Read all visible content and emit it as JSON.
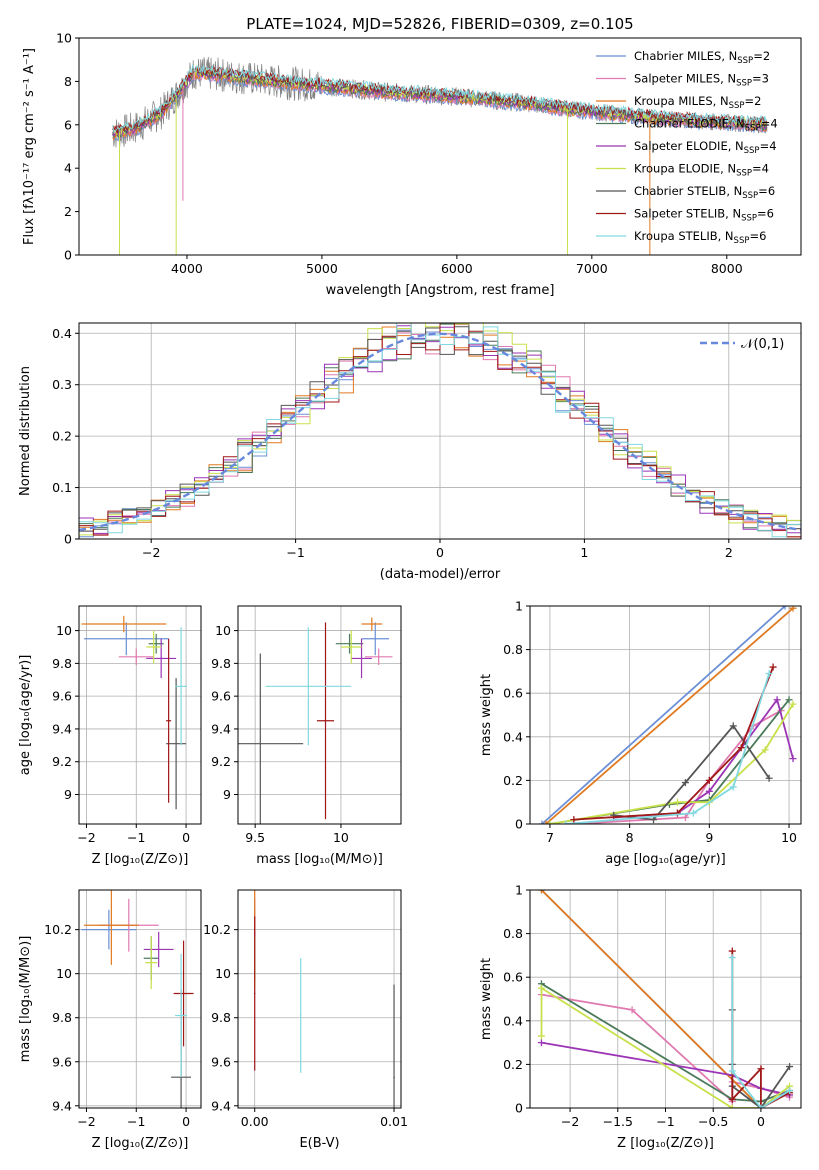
{
  "figure": {
    "title": "PLATE=1024, MJD=52826, FIBERID=0309, z=0.105"
  },
  "colors": {
    "models": [
      "#6b8fd6",
      "#e07ab0",
      "#e07a20",
      "#4a7a5a",
      "#9b35b5",
      "#c8e04a",
      "#555555",
      "#a01818",
      "#80d8e0"
    ],
    "normal_curve": "#6688dd",
    "data": "#808080"
  },
  "legend": {
    "entries": [
      {
        "name": "Chabrier MILES",
        "nssp": "2"
      },
      {
        "name": "Salpeter MILES",
        "nssp": "3"
      },
      {
        "name": "Kroupa MILES",
        "nssp": "2"
      },
      {
        "name": "Chabrier ELODIE",
        "nssp": "4"
      },
      {
        "name": "Salpeter ELODIE",
        "nssp": "4"
      },
      {
        "name": "Kroupa ELODIE",
        "nssp": "4"
      },
      {
        "name": "Chabrier STELIB",
        "nssp": "6"
      },
      {
        "name": "Salpeter STELIB",
        "nssp": "6"
      },
      {
        "name": "Kroupa STELIB",
        "nssp": "6"
      }
    ]
  },
  "chart_data": [
    {
      "id": "spectrum",
      "type": "line",
      "xlabel": "wavelength [Angstrom, rest frame]",
      "ylabel": "Flux [fλ10⁻¹⁷ erg cm⁻² s⁻¹ A⁻¹]",
      "xlim": [
        3200,
        8550
      ],
      "ylim": [
        0,
        10
      ],
      "xticks": [
        4000,
        5000,
        6000,
        7000,
        8000
      ],
      "yticks": [
        0,
        2,
        4,
        6,
        8,
        10
      ],
      "continuum": {
        "x": [
          3450,
          3600,
          3800,
          3950,
          4050,
          4250,
          4500,
          4800,
          5000,
          5500,
          6000,
          6500,
          7000,
          7500,
          8000,
          8300
        ],
        "y": [
          5.6,
          5.8,
          6.5,
          7.6,
          8.4,
          8.3,
          8.1,
          7.9,
          7.8,
          7.5,
          7.3,
          7.0,
          6.6,
          6.3,
          6.1,
          6.0
        ]
      },
      "dips": [
        {
          "x": 3500,
          "y": 0.0
        },
        {
          "x": 3920,
          "y": 0.0
        },
        {
          "x": 3970,
          "y": 2.5
        },
        {
          "x": 6820,
          "y": 0.0
        },
        {
          "x": 7430,
          "y": 0.0
        }
      ]
    },
    {
      "id": "residuals",
      "type": "histogram",
      "xlabel": "(data-model)/error",
      "ylabel": "Normed distribution",
      "xlim": [
        -2.5,
        2.5
      ],
      "ylim": [
        0,
        0.42
      ],
      "xticks": [
        -2,
        -1,
        0,
        1,
        2
      ],
      "yticks": [
        0.0,
        0.1,
        0.2,
        0.3,
        0.4
      ],
      "reference": {
        "label": "𝒩(0,1)",
        "mean": 0,
        "sigma": 1
      }
    },
    {
      "id": "age_vs_Z",
      "type": "scatter",
      "xlabel": "Z [log₁₀(Z/Z⊙)]",
      "ylabel": "age [log₁₀(age/yr)]",
      "xlim": [
        -2.15,
        0.3
      ],
      "ylim": [
        8.82,
        10.15
      ],
      "xticks": [
        -2,
        -1,
        0
      ],
      "yticks": [
        9.0,
        9.2,
        9.4,
        9.6,
        9.8,
        10.0
      ],
      "points": [
        {
          "x": -1.2,
          "y": 9.95,
          "xerr": 0.85,
          "yerr": 0.1
        },
        {
          "x": -1.0,
          "y": 9.84,
          "xerr": 0.35,
          "yerr": 0.05
        },
        {
          "x": -1.25,
          "y": 10.04,
          "xerr": 0.85,
          "yerr": 0.05
        },
        {
          "x": -0.6,
          "y": 9.92,
          "xerr": 0.15,
          "yerr": 0.06
        },
        {
          "x": -0.5,
          "y": 9.83,
          "xerr": 0.3,
          "yerr": 0.12
        },
        {
          "x": -0.65,
          "y": 9.9,
          "xerr": 0.15,
          "yerr": 0.1
        },
        {
          "x": -0.2,
          "y": 9.31,
          "xerr": 0.2,
          "yerr": 0.4
        },
        {
          "x": -0.35,
          "y": 9.45,
          "xerr": 0.05,
          "yerr": 0.5
        },
        {
          "x": -0.1,
          "y": 9.66,
          "xerr": 0.12,
          "yerr": 0.36
        }
      ]
    },
    {
      "id": "age_vs_mass",
      "type": "scatter",
      "xlabel": "mass [log₁₀(M/M⊙)]",
      "ylabel": "",
      "xlim": [
        9.4,
        10.35
      ],
      "ylim": [
        8.82,
        10.15
      ],
      "xticks": [
        9.5,
        10.0
      ],
      "yticks": [
        9.0,
        9.2,
        9.4,
        9.6,
        9.8,
        10.0
      ],
      "points": [
        {
          "x": 10.2,
          "y": 9.95,
          "xerr": 0.08,
          "yerr": 0.1
        },
        {
          "x": 10.22,
          "y": 9.84,
          "xerr": 0.08,
          "yerr": 0.05
        },
        {
          "x": 10.18,
          "y": 10.04,
          "xerr": 0.06,
          "yerr": 0.04
        },
        {
          "x": 10.05,
          "y": 9.92,
          "xerr": 0.08,
          "yerr": 0.06
        },
        {
          "x": 10.12,
          "y": 9.83,
          "xerr": 0.06,
          "yerr": 0.12
        },
        {
          "x": 10.06,
          "y": 9.9,
          "xerr": 0.06,
          "yerr": 0.1
        },
        {
          "x": 9.53,
          "y": 9.31,
          "xerr": 0.25,
          "yerr": 0.55
        },
        {
          "x": 9.91,
          "y": 9.45,
          "xerr": 0.05,
          "yerr": 0.6
        },
        {
          "x": 9.81,
          "y": 9.66,
          "xerr": 0.25,
          "yerr": 0.36
        }
      ]
    },
    {
      "id": "weight_vs_age",
      "type": "line",
      "xlabel": "age [log₁₀(age/yr)]",
      "ylabel": "mass weight",
      "xlim": [
        6.75,
        10.15
      ],
      "ylim": [
        0,
        1
      ],
      "xticks": [
        7,
        8,
        9,
        10
      ],
      "yticks": [
        0.0,
        0.2,
        0.4,
        0.6,
        0.8,
        1.0
      ],
      "series": [
        {
          "x": [
            6.9,
            9.95
          ],
          "y": [
            0.0,
            1.0
          ]
        },
        {
          "x": [
            7.3,
            8.7,
            9.0,
            9.55,
            9.9
          ],
          "y": [
            0.0,
            0.03,
            0.2,
            0.45,
            0.52
          ]
        },
        {
          "x": [
            6.95,
            10.05
          ],
          "y": [
            0.0,
            0.99
          ]
        },
        {
          "x": [
            7.0,
            8.5,
            9.0,
            10.0
          ],
          "y": [
            0.0,
            0.09,
            0.11,
            0.57
          ]
        },
        {
          "x": [
            7.8,
            8.6,
            9.0,
            9.85,
            10.05
          ],
          "y": [
            0.03,
            0.05,
            0.15,
            0.57,
            0.3
          ]
        },
        {
          "x": [
            7.0,
            8.6,
            9.0,
            9.7,
            10.05
          ],
          "y": [
            0.0,
            0.1,
            0.1,
            0.34,
            0.55
          ]
        },
        {
          "x": [
            7.8,
            8.3,
            8.7,
            9.3,
            9.75
          ],
          "y": [
            0.04,
            0.02,
            0.19,
            0.45,
            0.21
          ]
        },
        {
          "x": [
            7.3,
            8.6,
            9.0,
            9.4,
            9.8
          ],
          "y": [
            0.02,
            0.05,
            0.2,
            0.35,
            0.72
          ]
        },
        {
          "x": [
            7.2,
            8.8,
            9.3,
            9.75
          ],
          "y": [
            0.0,
            0.05,
            0.17,
            0.69
          ]
        }
      ]
    },
    {
      "id": "mass_vs_Z",
      "type": "scatter",
      "xlabel": "Z [log₁₀(Z/Z⊙)]",
      "ylabel": "mass [log₁₀(M/M⊙)]",
      "xlim": [
        -2.15,
        0.3
      ],
      "ylim": [
        9.39,
        10.38
      ],
      "xticks": [
        -2,
        -1,
        0
      ],
      "yticks": [
        9.4,
        9.6,
        9.8,
        10.0,
        10.2
      ],
      "points": [
        {
          "x": -1.55,
          "y": 10.2,
          "xerr": 0.55,
          "yerr": 0.09
        },
        {
          "x": -1.15,
          "y": 10.22,
          "xerr": 0.6,
          "yerr": 0.12
        },
        {
          "x": -1.5,
          "y": 10.22,
          "xerr": 0.55,
          "yerr": 0.18
        },
        {
          "x": -0.7,
          "y": 10.07,
          "xerr": 0.15,
          "yerr": 0.1
        },
        {
          "x": -0.55,
          "y": 10.11,
          "xerr": 0.3,
          "yerr": 0.08
        },
        {
          "x": -0.7,
          "y": 10.05,
          "xerr": 0.12,
          "yerr": 0.12
        },
        {
          "x": -0.1,
          "y": 9.53,
          "xerr": 0.2,
          "yerr": 0.4
        },
        {
          "x": -0.05,
          "y": 9.91,
          "xerr": 0.2,
          "yerr": 0.24
        },
        {
          "x": -0.1,
          "y": 9.81,
          "xerr": 0.12,
          "yerr": 0.28
        }
      ]
    },
    {
      "id": "mass_vs_ebv",
      "type": "scatter",
      "xlabel": "E(B-V)",
      "ylabel": "",
      "xlim": [
        -0.0012,
        0.0105
      ],
      "ylim": [
        9.39,
        10.38
      ],
      "xticks": [
        0.0,
        0.01
      ],
      "xticklabels": [
        "0.00",
        "0.01"
      ],
      "yticks": [
        9.4,
        9.6,
        9.8,
        10.0,
        10.2
      ],
      "points": [
        {
          "x": 0.0,
          "y": 10.2,
          "yerr": 0.09
        },
        {
          "x": 0.0,
          "y": 10.22,
          "yerr": 0.12
        },
        {
          "x": 0.0,
          "y": 10.22,
          "yerr": 0.18
        },
        {
          "x": 0.0,
          "y": 10.07,
          "yerr": 0.1
        },
        {
          "x": 0.0,
          "y": 10.11,
          "yerr": 0.08
        },
        {
          "x": 0.0,
          "y": 10.05,
          "yerr": 0.12
        },
        {
          "x": 0.01,
          "y": 9.53,
          "yerr": 0.42
        },
        {
          "x": 0.0,
          "y": 9.91,
          "yerr": 0.35
        },
        {
          "x": 0.0033,
          "y": 9.81,
          "yerr": 0.26
        }
      ]
    },
    {
      "id": "weight_vs_Z",
      "type": "line",
      "xlabel": "Z [log₁₀(Z/Z⊙)]",
      "ylabel": "mass weight",
      "xlim": [
        -2.42,
        0.42
      ],
      "ylim": [
        0,
        1
      ],
      "xticks": [
        -2.0,
        -1.5,
        -1.0,
        -0.5,
        0.0
      ],
      "yticks": [
        0.0,
        0.2,
        0.4,
        0.6,
        0.8,
        1.0
      ],
      "series": [
        {
          "x": [
            -2.3,
            0.0
          ],
          "y": [
            1.0,
            0.0
          ]
        },
        {
          "x": [
            -2.3,
            -1.35,
            -0.3,
            -0.3,
            0.0,
            0.3
          ],
          "y": [
            0.52,
            0.45,
            0.03,
            0.12,
            0.09,
            0.05
          ]
        },
        {
          "x": [
            -2.3,
            0.0
          ],
          "y": [
            1.0,
            0.0
          ]
        },
        {
          "x": [
            -2.3,
            -0.3,
            0.0,
            0.3
          ],
          "y": [
            0.57,
            0.04,
            0.03,
            0.08
          ]
        },
        {
          "x": [
            -2.3,
            -0.3,
            0.0,
            0.3
          ],
          "y": [
            0.3,
            0.15,
            0.09,
            0.06
          ]
        },
        {
          "x": [
            -2.3,
            -2.3,
            -0.3,
            0.0,
            0.3
          ],
          "y": [
            0.33,
            0.55,
            0.0,
            0.0,
            0.1
          ]
        },
        {
          "x": [
            -0.3,
            -0.3,
            -0.3,
            0.0,
            0.3
          ],
          "y": [
            0.45,
            0.2,
            0.1,
            0.0,
            0.19
          ]
        },
        {
          "x": [
            -0.3,
            -0.3,
            0.0,
            0.0,
            0.3
          ],
          "y": [
            0.72,
            0.04,
            0.18,
            0.0,
            0.07
          ]
        },
        {
          "x": [
            -0.3,
            -0.3,
            0.0,
            0.3
          ],
          "y": [
            0.69,
            0.17,
            0.0,
            0.08
          ]
        }
      ]
    }
  ]
}
